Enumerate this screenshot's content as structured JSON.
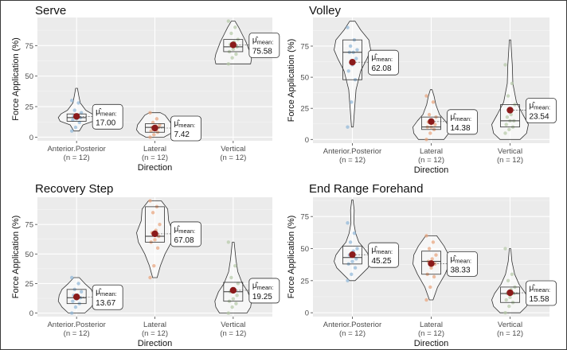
{
  "figure": {
    "y_axis_label": "Force Application (%)",
    "x_axis_label": "Direction",
    "stat_label": "mean:",
    "mu_symbol": "μ̂"
  },
  "chart_data": [
    {
      "type": "violin-box",
      "title": "Serve",
      "xlabel": "Direction",
      "ylabel": "Force Application (%)",
      "categories": [
        "Anterior.Posterior",
        "Lateral",
        "Vertical"
      ],
      "category_n": [
        "(n = 12)",
        "(n = 12)",
        "(n = 12)"
      ],
      "ylim": [
        -3,
        98
      ],
      "yticks": [
        0,
        25,
        50,
        75
      ],
      "grid": true,
      "means": [
        17.0,
        7.42,
        75.58
      ],
      "mean_labels": [
        "17.00",
        "7.42",
        "75.58"
      ],
      "boxes": [
        {
          "q1": 13,
          "median": 16,
          "q3": 19
        },
        {
          "q1": 4,
          "median": 8,
          "q3": 11
        },
        {
          "q1": 70,
          "median": 74,
          "q3": 80
        }
      ],
      "violins": [
        {
          "min": 5,
          "max": 40,
          "shape": [
            [
              5,
              0.15
            ],
            [
              10,
              0.35
            ],
            [
              13,
              0.9
            ],
            [
              16,
              1
            ],
            [
              19,
              0.85
            ],
            [
              22,
              0.5
            ],
            [
              28,
              0.2
            ],
            [
              34,
              0.12
            ],
            [
              40,
              0.05
            ]
          ]
        },
        {
          "min": 0,
          "max": 20,
          "shape": [
            [
              0,
              0.5
            ],
            [
              3,
              0.85
            ],
            [
              6,
              1
            ],
            [
              10,
              0.95
            ],
            [
              14,
              0.75
            ],
            [
              18,
              0.55
            ],
            [
              20,
              0.3
            ]
          ]
        },
        {
          "min": 60,
          "max": 95,
          "shape": [
            [
              60,
              0.95
            ],
            [
              64,
              1
            ],
            [
              68,
              0.95
            ],
            [
              72,
              0.85
            ],
            [
              78,
              0.7
            ],
            [
              84,
              0.5
            ],
            [
              90,
              0.3
            ],
            [
              95,
              0.1
            ]
          ]
        }
      ],
      "points": [
        [
          5,
          8,
          12,
          14,
          15,
          16,
          17,
          18,
          20,
          22,
          28,
          30
        ],
        [
          0,
          2,
          4,
          5,
          7,
          8,
          8,
          9,
          10,
          12,
          15,
          20
        ],
        [
          60,
          65,
          68,
          70,
          72,
          74,
          76,
          78,
          80,
          85,
          90,
          95
        ]
      ]
    },
    {
      "type": "violin-box",
      "title": "Volley",
      "xlabel": "Direction",
      "ylabel": "Force Application (%)",
      "categories": [
        "Anterior.Posterior",
        "Lateral",
        "Vertical"
      ],
      "category_n": [
        "(n = 12)",
        "(n = 12)",
        "(n = 12)"
      ],
      "ylim": [
        -3,
        98
      ],
      "yticks": [
        0,
        25,
        50,
        75
      ],
      "grid": true,
      "means": [
        62.08,
        14.38,
        23.54
      ],
      "mean_labels": [
        "62.08",
        "14.38",
        "23.54"
      ],
      "boxes": [
        {
          "q1": 48,
          "median": 70,
          "q3": 80
        },
        {
          "q1": 8,
          "median": 10,
          "q3": 18
        },
        {
          "q1": 10,
          "median": 15,
          "q3": 28
        }
      ],
      "violins": [
        {
          "min": 10,
          "max": 95,
          "shape": [
            [
              10,
              0.05
            ],
            [
              25,
              0.12
            ],
            [
              40,
              0.2
            ],
            [
              55,
              0.45
            ],
            [
              65,
              0.8
            ],
            [
              72,
              1
            ],
            [
              80,
              0.9
            ],
            [
              88,
              0.45
            ],
            [
              95,
              0.15
            ]
          ]
        },
        {
          "min": 0,
          "max": 40,
          "shape": [
            [
              0,
              0.7
            ],
            [
              5,
              0.95
            ],
            [
              10,
              1
            ],
            [
              15,
              0.75
            ],
            [
              20,
              0.45
            ],
            [
              28,
              0.25
            ],
            [
              35,
              0.15
            ],
            [
              40,
              0.05
            ]
          ]
        },
        {
          "min": 0,
          "max": 80,
          "shape": [
            [
              0,
              0.55
            ],
            [
              5,
              0.9
            ],
            [
              12,
              1
            ],
            [
              20,
              0.7
            ],
            [
              30,
              0.35
            ],
            [
              45,
              0.15
            ],
            [
              60,
              0.12
            ],
            [
              70,
              0.08
            ],
            [
              80,
              0.04
            ]
          ]
        }
      ],
      "points": [
        [
          10,
          30,
          48,
          55,
          60,
          65,
          70,
          70,
          72,
          75,
          80,
          90
        ],
        [
          0,
          5,
          8,
          10,
          10,
          12,
          14,
          15,
          18,
          20,
          30,
          35
        ],
        [
          5,
          8,
          10,
          12,
          15,
          15,
          18,
          20,
          28,
          35,
          45,
          60
        ]
      ]
    },
    {
      "type": "violin-box",
      "title": "Recovery Step",
      "xlabel": "Direction",
      "ylabel": "Force Application (%)",
      "categories": [
        "Anterior.Posterior",
        "Lateral",
        "Vertical"
      ],
      "category_n": [
        "(n = 12)",
        "(n = 12)",
        "(n = 12)"
      ],
      "ylim": [
        -3,
        98
      ],
      "yticks": [
        0,
        25,
        50,
        75
      ],
      "grid": true,
      "means": [
        13.67,
        67.08,
        19.25
      ],
      "mean_labels": [
        "13.67",
        "67.08",
        "19.25"
      ],
      "boxes": [
        {
          "q1": 8,
          "median": 13,
          "q3": 20
        },
        {
          "q1": 60,
          "median": 65,
          "q3": 90
        },
        {
          "q1": 10,
          "median": 18,
          "q3": 26
        }
      ],
      "violins": [
        {
          "min": 0,
          "max": 30,
          "shape": [
            [
              0,
              0.45
            ],
            [
              5,
              0.8
            ],
            [
              10,
              1
            ],
            [
              15,
              0.95
            ],
            [
              20,
              0.8
            ],
            [
              25,
              0.45
            ],
            [
              30,
              0.15
            ]
          ]
        },
        {
          "min": 30,
          "max": 95,
          "shape": [
            [
              30,
              0.12
            ],
            [
              40,
              0.3
            ],
            [
              50,
              0.55
            ],
            [
              60,
              0.9
            ],
            [
              68,
              1
            ],
            [
              78,
              0.75
            ],
            [
              88,
              0.7
            ],
            [
              95,
              0.35
            ]
          ]
        },
        {
          "min": 0,
          "max": 60,
          "shape": [
            [
              0,
              0.75
            ],
            [
              5,
              0.95
            ],
            [
              10,
              1
            ],
            [
              18,
              0.8
            ],
            [
              25,
              0.5
            ],
            [
              35,
              0.25
            ],
            [
              45,
              0.15
            ],
            [
              60,
              0.05
            ]
          ]
        }
      ],
      "points": [
        [
          0,
          5,
          8,
          10,
          12,
          13,
          15,
          15,
          18,
          20,
          25,
          30
        ],
        [
          30,
          40,
          55,
          60,
          62,
          65,
          68,
          70,
          75,
          85,
          90,
          95
        ],
        [
          0,
          5,
          8,
          10,
          12,
          15,
          18,
          20,
          25,
          30,
          40,
          60
        ]
      ]
    },
    {
      "type": "violin-box",
      "title": "End Range Forehand",
      "xlabel": "Direction",
      "ylabel": "Force Application (%)",
      "categories": [
        "Anterior.Posterior",
        "Lateral",
        "Vertical"
      ],
      "category_n": [
        "(n = 12)",
        "(n = 12)",
        "(n = 12)"
      ],
      "ylim": [
        -3,
        90
      ],
      "yticks": [
        0,
        25,
        50,
        75
      ],
      "grid": true,
      "means": [
        45.25,
        38.33,
        15.58
      ],
      "mean_labels": [
        "45.25",
        "38.33",
        "15.58"
      ],
      "boxes": [
        {
          "q1": 38,
          "median": 43,
          "q3": 52
        },
        {
          "q1": 30,
          "median": 40,
          "q3": 48
        },
        {
          "q1": 8,
          "median": 15,
          "q3": 20
        }
      ],
      "violins": [
        {
          "min": 25,
          "max": 88,
          "shape": [
            [
              25,
              0.15
            ],
            [
              30,
              0.5
            ],
            [
              35,
              0.85
            ],
            [
              40,
              1
            ],
            [
              45,
              0.9
            ],
            [
              50,
              0.65
            ],
            [
              55,
              0.35
            ],
            [
              62,
              0.18
            ],
            [
              70,
              0.08
            ],
            [
              80,
              0.1
            ],
            [
              88,
              0.03
            ]
          ]
        },
        {
          "min": 10,
          "max": 60,
          "shape": [
            [
              10,
              0.1
            ],
            [
              20,
              0.35
            ],
            [
              30,
              0.75
            ],
            [
              38,
              1
            ],
            [
              45,
              0.95
            ],
            [
              52,
              0.7
            ],
            [
              60,
              0.3
            ]
          ]
        },
        {
          "min": 0,
          "max": 50,
          "shape": [
            [
              0,
              0.55
            ],
            [
              5,
              0.9
            ],
            [
              10,
              1
            ],
            [
              15,
              0.85
            ],
            [
              22,
              0.5
            ],
            [
              30,
              0.25
            ],
            [
              40,
              0.1
            ],
            [
              50,
              0.04
            ]
          ]
        }
      ],
      "points": [
        [
          25,
          30,
          35,
          38,
          40,
          42,
          45,
          48,
          50,
          55,
          62,
          70
        ],
        [
          10,
          20,
          28,
          30,
          35,
          38,
          40,
          42,
          45,
          50,
          55,
          60
        ],
        [
          0,
          5,
          8,
          10,
          12,
          15,
          15,
          18,
          20,
          25,
          30,
          50
        ]
      ]
    }
  ]
}
